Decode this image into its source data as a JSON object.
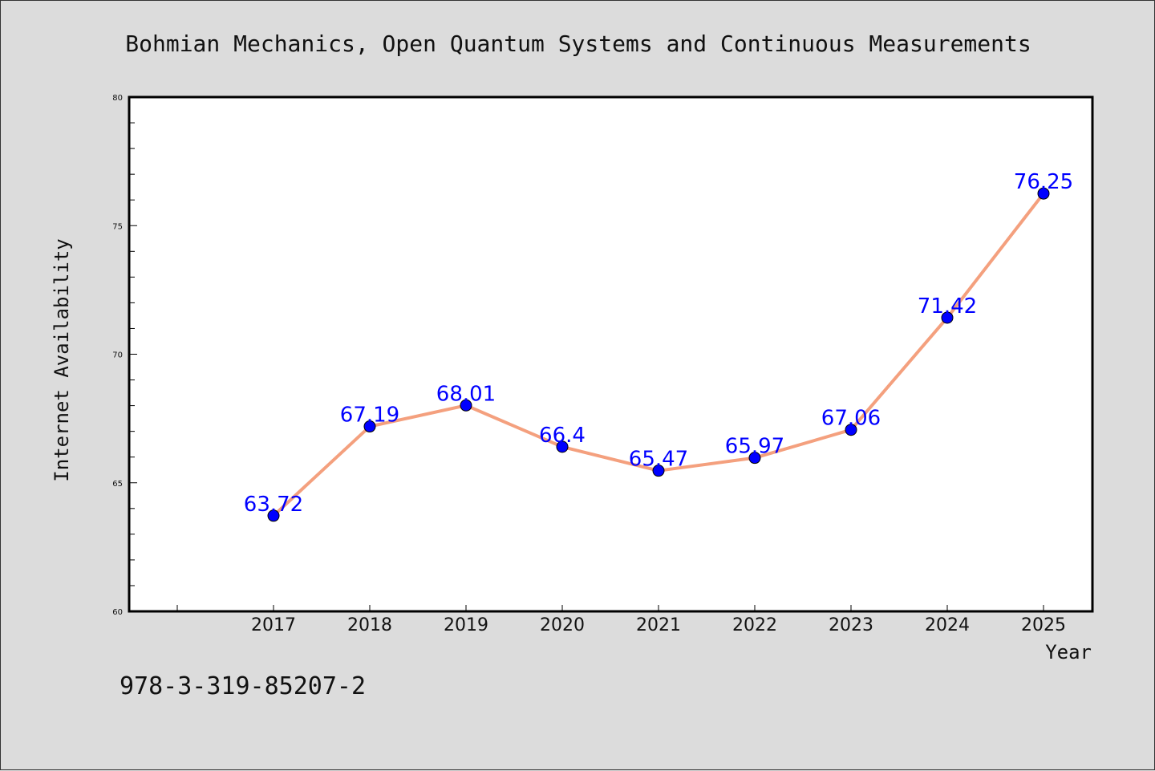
{
  "chart_data": {
    "type": "line",
    "title": "Bohmian Mechanics, Open Quantum Systems and Continuous Measurements",
    "xlabel": "Year",
    "ylabel": "Internet Availability",
    "x": [
      "2017",
      "2018",
      "2019",
      "2020",
      "2021",
      "2022",
      "2023",
      "2024",
      "2025"
    ],
    "series": [
      {
        "values": [
          63.72,
          67.19,
          68.01,
          66.4,
          65.47,
          65.97,
          67.06,
          71.42,
          76.25
        ],
        "data_labels": [
          "63.72",
          "67.19",
          "68.01",
          "66.4",
          "65.47",
          "65.97",
          "67.06",
          "71.42",
          "76.25"
        ]
      }
    ],
    "ylim": [
      60,
      80
    ],
    "yticks": [
      "60",
      "65",
      "70",
      "75",
      "80"
    ],
    "grid": false,
    "legend": "none",
    "colors": {
      "line": "#f4a07e",
      "marker": "#0000ff",
      "label": "#0000ff"
    }
  },
  "caption": "978-3-319-85207-2"
}
